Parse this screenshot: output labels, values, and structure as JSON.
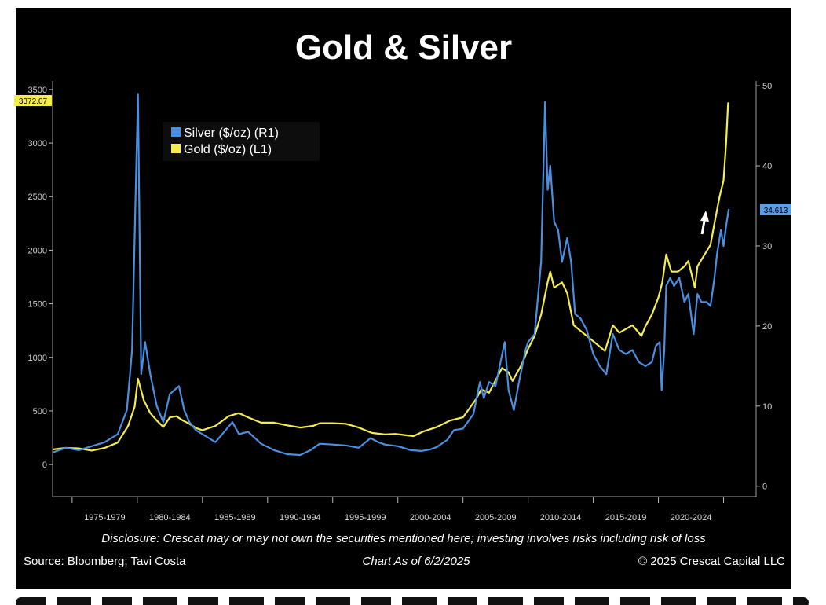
{
  "chart_data": {
    "type": "line",
    "title": "Gold & Silver",
    "legend": {
      "placement": "top-left",
      "entries": [
        "Silver ($/oz) (R1)",
        "Gold ($/oz) (L1)"
      ]
    },
    "left_axis": {
      "ticks": [
        "3500",
        "3000",
        "2500",
        "2000",
        "1500",
        "1000",
        "500",
        "0"
      ],
      "ylim": [
        -300,
        3580
      ]
    },
    "right_axis": {
      "ticks": [
        "50",
        "40",
        "30",
        "20",
        "10",
        "0"
      ],
      "ylim": [
        -1.3,
        50.6
      ]
    },
    "x_range": [
      1973.5,
      2027.5
    ],
    "x_tick_labels": [
      "1975-1979",
      "1980-1984",
      "1985-1989",
      "1990-1994",
      "1995-1999",
      "2000-2004",
      "2005-2009",
      "2010-2014",
      "2015-2019",
      "2020-2024"
    ],
    "last_value_badges": {
      "gold": "3372.07",
      "silver": "34.613"
    },
    "series": [
      {
        "name": "Silver ($/oz) (R1)",
        "axis": "right",
        "color": "#4a8fe0",
        "x": [
          1973.5,
          1974.5,
          1975.5,
          1976.5,
          1977.5,
          1978.5,
          1979.2,
          1979.6,
          1980.05,
          1980.3,
          1980.6,
          1981.0,
          1981.5,
          1982.0,
          1982.5,
          1983.2,
          1983.6,
          1984.0,
          1984.5,
          1985.0,
          1986.0,
          1987.3,
          1987.8,
          1988.5,
          1989.5,
          1990.5,
          1991.5,
          1992.5,
          1993.3,
          1994.0,
          1995.0,
          1996.0,
          1997.0,
          1997.9,
          1998.5,
          1999.0,
          2000.0,
          2001.0,
          2001.8,
          2002.5,
          2003.0,
          2003.8,
          2004.3,
          2005.0,
          2005.8,
          2006.3,
          2006.6,
          2007.0,
          2007.5,
          2008.2,
          2008.5,
          2008.9,
          2009.3,
          2009.8,
          2010.0,
          2010.5,
          2011.0,
          2011.3,
          2011.5,
          2011.7,
          2012.0,
          2012.3,
          2012.6,
          2013.0,
          2013.3,
          2013.6,
          2014.0,
          2014.5,
          2015.0,
          2015.5,
          2016.0,
          2016.5,
          2017.0,
          2017.5,
          2018.0,
          2018.5,
          2019.0,
          2019.5,
          2019.8,
          2020.1,
          2020.25,
          2020.45,
          2020.6,
          2020.9,
          2021.2,
          2021.6,
          2022.0,
          2022.3,
          2022.7,
          2023.0,
          2023.3,
          2023.7,
          2024.0,
          2024.3,
          2024.5,
          2024.8,
          2025.0,
          2025.2,
          2025.4
        ],
        "values": [
          4.2,
          4.8,
          4.5,
          5.0,
          5.5,
          6.5,
          9.5,
          17.0,
          49.0,
          14.0,
          18.0,
          14.0,
          10.0,
          8.0,
          11.5,
          12.5,
          9.5,
          8.0,
          7.0,
          6.5,
          5.5,
          8.0,
          6.5,
          6.8,
          5.3,
          4.5,
          4.0,
          3.9,
          4.5,
          5.3,
          5.2,
          5.1,
          4.8,
          6.0,
          5.5,
          5.2,
          5.0,
          4.5,
          4.4,
          4.6,
          4.9,
          5.8,
          7.0,
          7.2,
          9.0,
          13.0,
          11.0,
          13.0,
          12.5,
          18.0,
          12.0,
          9.5,
          13.0,
          17.0,
          18.0,
          19.0,
          28.0,
          48.0,
          37.0,
          40.0,
          33.0,
          32.0,
          28.0,
          31.0,
          28.0,
          21.5,
          21.0,
          19.5,
          16.5,
          15.0,
          14.0,
          19.0,
          17.0,
          16.5,
          17.0,
          15.5,
          15.0,
          15.5,
          17.5,
          18.0,
          12.0,
          17.0,
          25.0,
          26.0,
          25.0,
          26.0,
          23.0,
          24.0,
          19.0,
          24.0,
          23.0,
          23.0,
          22.5,
          26.0,
          29.0,
          32.0,
          30.0,
          32.5,
          34.6
        ]
      },
      {
        "name": "Gold ($/oz) (L1)",
        "axis": "left",
        "color": "#f5ec50",
        "x": [
          1973.5,
          1974.5,
          1975.5,
          1976.5,
          1977.5,
          1978.5,
          1979.3,
          1979.8,
          1980.05,
          1980.5,
          1981.0,
          1981.5,
          1982.0,
          1982.5,
          1983.0,
          1983.5,
          1984.0,
          1984.5,
          1985.0,
          1986.0,
          1987.0,
          1987.8,
          1988.5,
          1989.5,
          1990.5,
          1991.5,
          1992.5,
          1993.5,
          1994.0,
          1995.0,
          1996.0,
          1997.0,
          1998.0,
          1999.0,
          1999.8,
          2000.5,
          2001.2,
          2002.0,
          2003.0,
          2004.0,
          2005.0,
          2006.0,
          2006.4,
          2007.0,
          2008.0,
          2008.5,
          2008.8,
          2009.5,
          2010.0,
          2010.5,
          2011.0,
          2011.5,
          2011.7,
          2012.0,
          2012.6,
          2013.0,
          2013.5,
          2014.0,
          2015.0,
          2015.9,
          2016.5,
          2017.0,
          2018.0,
          2018.7,
          2019.0,
          2019.5,
          2020.0,
          2020.3,
          2020.6,
          2021.0,
          2021.5,
          2022.0,
          2022.3,
          2022.8,
          2023.0,
          2023.5,
          2024.0,
          2024.3,
          2024.7,
          2025.0,
          2025.2,
          2025.35,
          2025.42
        ],
        "values": [
          140,
          155,
          150,
          130,
          155,
          205,
          360,
          540,
          800,
          600,
          480,
          410,
          350,
          440,
          450,
          410,
          380,
          340,
          320,
          360,
          450,
          480,
          440,
          390,
          390,
          365,
          345,
          360,
          385,
          385,
          380,
          345,
          295,
          280,
          285,
          275,
          265,
          310,
          350,
          410,
          440,
          610,
          700,
          670,
          900,
          860,
          780,
          930,
          1080,
          1200,
          1400,
          1700,
          1800,
          1650,
          1700,
          1600,
          1300,
          1250,
          1150,
          1060,
          1300,
          1230,
          1300,
          1200,
          1290,
          1400,
          1560,
          1700,
          1960,
          1800,
          1800,
          1850,
          1900,
          1650,
          1850,
          1950,
          2050,
          2250,
          2500,
          2650,
          3000,
          3372,
          3372
        ]
      }
    ]
  },
  "footer": {
    "disclosure": "Disclosure: Crescat may or may not own the securities mentioned here; investing involves risks including risk of loss",
    "source": "Source: Bloomberg; Tavi Costa",
    "chart_date": "Chart As of 6/2/2025",
    "copyright": "© 2025 Crescat Capital LLC"
  },
  "annotation": {
    "arrow": "up-arrow-icon"
  }
}
